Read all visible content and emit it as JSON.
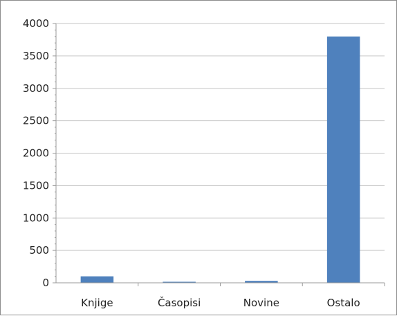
{
  "chart_data": {
    "type": "bar",
    "categories": [
      "Knjige",
      "Časopisi",
      "Novine",
      "Ostalo"
    ],
    "values": [
      100,
      10,
      30,
      3800
    ],
    "ylim": [
      0,
      4000
    ],
    "yticks": [
      0,
      500,
      1000,
      1500,
      2000,
      2500,
      3000,
      3500,
      4000
    ],
    "grid": true,
    "legend": "none",
    "bar_color": "#4f81bd",
    "grid_color": "#c6c6c6",
    "axis_color": "#9a9a9a"
  }
}
